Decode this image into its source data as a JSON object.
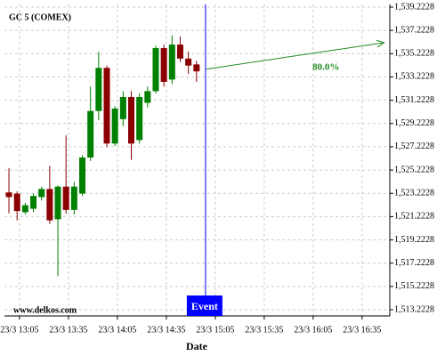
{
  "chart_data": {
    "type": "candlestick",
    "title": "GC 5 (COMEX)",
    "watermark": "www.delkos.com",
    "xlabel": "Date",
    "up_color": "#008000",
    "down_color": "#8b0000",
    "grid": true,
    "xlim": [
      -0.55,
      46.7
    ],
    "ylim": [
      1512.69,
      1539.45
    ],
    "open": [
      1523.3,
      1523.2,
      1521.6,
      1521.9,
      1522.9,
      1523.6,
      1521.0,
      1523.8,
      1521.8,
      1523.2,
      1526.3,
      1530.3,
      1534.0,
      1527.5,
      1529.6,
      1531.5,
      1527.8,
      1531.0,
      1532.0,
      1535.7,
      1533.0,
      1536.0,
      1534.8,
      1534.3
    ],
    "high": [
      1525.4,
      1523.4,
      1522.4,
      1523.2,
      1523.8,
      1525.6,
      1523.9,
      1528.2,
      1524.2,
      1526.5,
      1532.4,
      1535.4,
      1534.2,
      1530.7,
      1532.0,
      1532.0,
      1531.8,
      1532.4,
      1535.9,
      1536.0,
      1536.8,
      1536.7,
      1535.4,
      1534.6
    ],
    "low": [
      1521.5,
      1520.9,
      1521.4,
      1521.6,
      1522.6,
      1520.6,
      1516.1,
      1521.5,
      1521.4,
      1523.0,
      1526.0,
      1529.5,
      1527.2,
      1527.3,
      1529.0,
      1526.1,
      1527.5,
      1530.6,
      1531.8,
      1532.4,
      1532.6,
      1534.5,
      1533.5,
      1532.8
    ],
    "close": [
      1522.9,
      1521.7,
      1522.2,
      1523.0,
      1523.6,
      1520.9,
      1523.8,
      1521.8,
      1523.8,
      1526.3,
      1530.3,
      1534.0,
      1527.5,
      1530.5,
      1531.5,
      1527.5,
      1531.5,
      1532.0,
      1535.7,
      1532.8,
      1536.0,
      1534.8,
      1534.2,
      1533.7
    ],
    "yticks": [
      {
        "value": 1513.2228,
        "label": "1,513.2228"
      },
      {
        "value": 1515.2228,
        "label": "1,515.2228"
      },
      {
        "value": 1517.2228,
        "label": "1,517.2228"
      },
      {
        "value": 1519.2228,
        "label": "1,519.2228"
      },
      {
        "value": 1521.2228,
        "label": "1,521.2228"
      },
      {
        "value": 1523.2228,
        "label": "1,523.2228"
      },
      {
        "value": 1525.2228,
        "label": "1,525.2228"
      },
      {
        "value": 1527.2228,
        "label": "1,527.2228"
      },
      {
        "value": 1529.2228,
        "label": "1,529.2228"
      },
      {
        "value": 1531.2228,
        "label": "1,531.2228"
      },
      {
        "value": 1533.2228,
        "label": "1,533.2228"
      },
      {
        "value": 1535.2228,
        "label": "1,535.2228"
      },
      {
        "value": 1537.2228,
        "label": "1,537.2228"
      },
      {
        "value": 1539.2228,
        "label": "1,539.2228"
      }
    ],
    "xticks": [
      {
        "value": 1.3,
        "label": "23/3 13:05"
      },
      {
        "value": 7.3,
        "label": "23/3 13:35"
      },
      {
        "value": 13.3,
        "label": "23/3 14:05"
      },
      {
        "value": 19.3,
        "label": "23/3 14:35"
      },
      {
        "value": 25.3,
        "label": "23/3 15:05"
      },
      {
        "value": 31.3,
        "label": "23/3 15:35"
      },
      {
        "value": 37.3,
        "label": "23/3 16:05"
      },
      {
        "value": 43.3,
        "label": "23/3 16:35"
      }
    ],
    "event": {
      "label": "Event",
      "x": 24.1,
      "color": "#0000ff"
    },
    "arrow": {
      "x": [
        24.1,
        46.0
      ],
      "values": [
        1533.88,
        1536.17
      ],
      "label": "80.0%",
      "color": "#228b22"
    }
  }
}
